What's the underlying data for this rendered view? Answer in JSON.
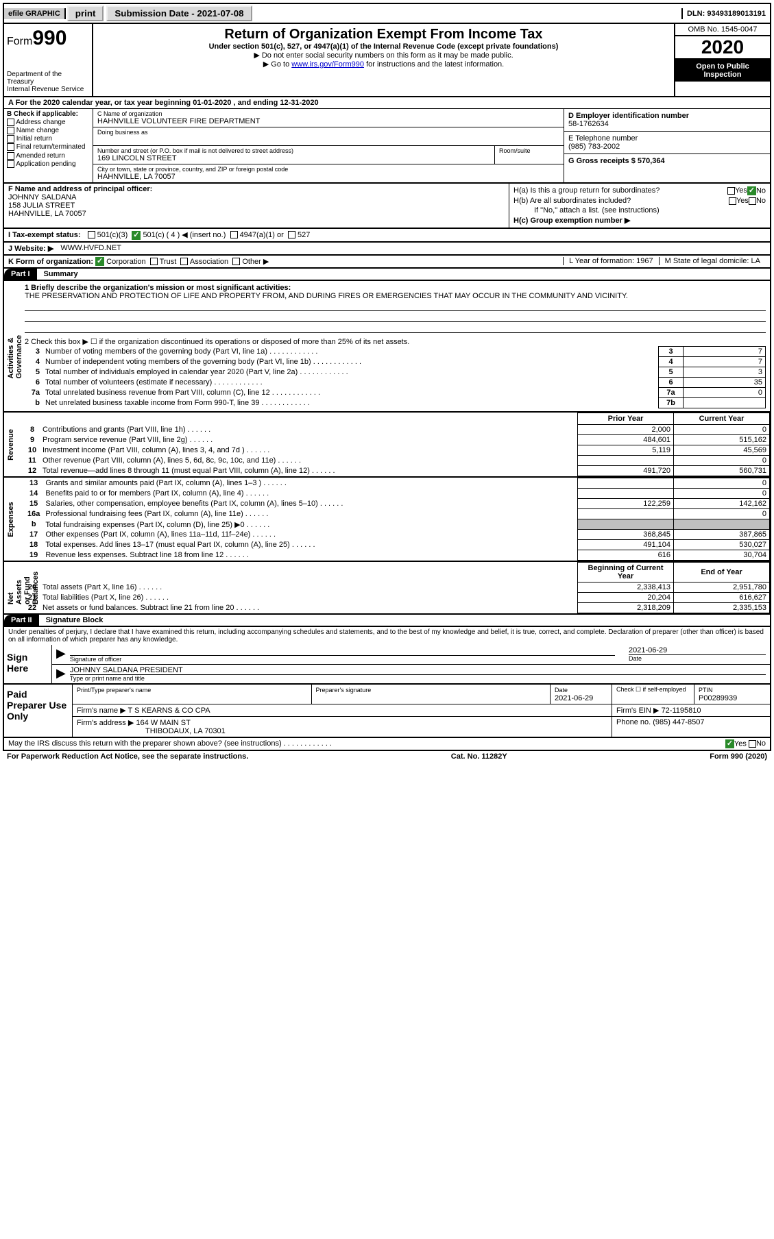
{
  "top": {
    "efile": "efile GRAPHIC",
    "print": "print",
    "sub_date": "Submission Date - 2021-07-08",
    "dln": "DLN: 93493189013191"
  },
  "header": {
    "form_word": "Form",
    "form_num": "990",
    "title": "Return of Organization Exempt From Income Tax",
    "subtitle": "Under section 501(c), 527, or 4947(a)(1) of the Internal Revenue Code (except private foundations)",
    "note1": "▶ Do not enter social security numbers on this form as it may be made public.",
    "note2_prefix": "▶ Go to ",
    "note2_link": "www.irs.gov/Form990",
    "note2_suffix": " for instructions and the latest information.",
    "dept": "Department of the Treasury\nInternal Revenue Service",
    "omb": "OMB No. 1545-0047",
    "year": "2020",
    "open": "Open to Public Inspection"
  },
  "period": "A For the 2020 calendar year, or tax year beginning 01-01-2020    , and ending 12-31-2020",
  "B": {
    "header": "B Check if applicable:",
    "items": [
      "Address change",
      "Name change",
      "Initial return",
      "Final return/terminated",
      "Amended return",
      "Application pending"
    ]
  },
  "C": {
    "name_label": "C Name of organization",
    "name": "HAHNVILLE VOLUNTEER FIRE DEPARTMENT",
    "dba_label": "Doing business as",
    "street_label": "Number and street (or P.O. box if mail is not delivered to street address)",
    "street": "169 LINCOLN STREET",
    "room_label": "Room/suite",
    "city_label": "City or town, state or province, country, and ZIP or foreign postal code",
    "city": "HAHNVILLE, LA  70057"
  },
  "D": {
    "ein_label": "D Employer identification number",
    "ein": "58-1762634",
    "phone_label": "E Telephone number",
    "phone": "(985) 783-2002",
    "gross_label": "G Gross receipts $ 570,364"
  },
  "F": {
    "label": "F  Name and address of principal officer:",
    "name": "JOHNNY SALDANA",
    "addr1": "158 JULIA STREET",
    "addr2": "HAHNVILLE, LA  70057"
  },
  "H": {
    "a_label": "H(a)  Is this a group return for subordinates?",
    "b_label": "H(b)  Are all subordinates included?",
    "b_note": "If \"No,\" attach a list. (see instructions)",
    "c_label": "H(c)  Group exemption number ▶",
    "yes": "Yes",
    "no": "No"
  },
  "I": {
    "label": "I  Tax-exempt status:",
    "opts": [
      "501(c)(3)",
      "501(c) ( 4 ) ◀ (insert no.)",
      "4947(a)(1) or",
      "527"
    ]
  },
  "J": {
    "label": "J   Website: ▶",
    "value": "WWW.HVFD.NET"
  },
  "K": {
    "label": "K Form of organization:",
    "opts": [
      "Corporation",
      "Trust",
      "Association",
      "Other ▶"
    ],
    "L": "L Year of formation: 1967",
    "M": "M State of legal domicile: LA"
  },
  "part1": {
    "label": "Part I",
    "title": "Summary",
    "line1_label": "1  Briefly describe the organization's mission or most significant activities:",
    "mission": "THE PRESERVATION AND PROTECTION OF LIFE AND PROPERTY FROM, AND DURING FIRES OR EMERGENCIES THAT MAY OCCUR IN THE COMMUNITY AND VICINITY.",
    "line2": "2  Check this box ▶ ☐  if the organization discontinued its operations or disposed of more than 25% of its net assets.",
    "side_ag": "Activities & Governance",
    "side_rev": "Revenue",
    "side_exp": "Expenses",
    "side_net": "Net Assets or Fund Balances",
    "rows_ag": [
      {
        "n": "3",
        "d": "Number of voting members of the governing body (Part VI, line 1a)",
        "box": "3",
        "v": "7"
      },
      {
        "n": "4",
        "d": "Number of independent voting members of the governing body (Part VI, line 1b)",
        "box": "4",
        "v": "7"
      },
      {
        "n": "5",
        "d": "Total number of individuals employed in calendar year 2020 (Part V, line 2a)",
        "box": "5",
        "v": "3"
      },
      {
        "n": "6",
        "d": "Total number of volunteers (estimate if necessary)",
        "box": "6",
        "v": "35"
      },
      {
        "n": "7a",
        "d": "Total unrelated business revenue from Part VIII, column (C), line 12",
        "box": "7a",
        "v": "0"
      },
      {
        "n": "b",
        "d": "Net unrelated business taxable income from Form 990-T, line 39",
        "box": "7b",
        "v": ""
      }
    ],
    "py_label": "Prior Year",
    "cy_label": "Current Year",
    "rows_rev": [
      {
        "n": "8",
        "d": "Contributions and grants (Part VIII, line 1h)",
        "py": "2,000",
        "cy": "0"
      },
      {
        "n": "9",
        "d": "Program service revenue (Part VIII, line 2g)",
        "py": "484,601",
        "cy": "515,162"
      },
      {
        "n": "10",
        "d": "Investment income (Part VIII, column (A), lines 3, 4, and 7d )",
        "py": "5,119",
        "cy": "45,569"
      },
      {
        "n": "11",
        "d": "Other revenue (Part VIII, column (A), lines 5, 6d, 8c, 9c, 10c, and 11e)",
        "py": "",
        "cy": "0"
      },
      {
        "n": "12",
        "d": "Total revenue—add lines 8 through 11 (must equal Part VIII, column (A), line 12)",
        "py": "491,720",
        "cy": "560,731"
      }
    ],
    "rows_exp": [
      {
        "n": "13",
        "d": "Grants and similar amounts paid (Part IX, column (A), lines 1–3 )",
        "py": "",
        "cy": "0"
      },
      {
        "n": "14",
        "d": "Benefits paid to or for members (Part IX, column (A), line 4)",
        "py": "",
        "cy": "0"
      },
      {
        "n": "15",
        "d": "Salaries, other compensation, employee benefits (Part IX, column (A), lines 5–10)",
        "py": "122,259",
        "cy": "142,162"
      },
      {
        "n": "16a",
        "d": "Professional fundraising fees (Part IX, column (A), line 11e)",
        "py": "",
        "cy": "0"
      },
      {
        "n": "b",
        "d": "Total fundraising expenses (Part IX, column (D), line 25) ▶0",
        "py": "gray",
        "cy": "gray"
      },
      {
        "n": "17",
        "d": "Other expenses (Part IX, column (A), lines 11a–11d, 11f–24e)",
        "py": "368,845",
        "cy": "387,865"
      },
      {
        "n": "18",
        "d": "Total expenses. Add lines 13–17 (must equal Part IX, column (A), line 25)",
        "py": "491,104",
        "cy": "530,027"
      },
      {
        "n": "19",
        "d": "Revenue less expenses. Subtract line 18 from line 12",
        "py": "616",
        "cy": "30,704"
      }
    ],
    "bcy_label": "Beginning of Current Year",
    "eoy_label": "End of Year",
    "rows_net": [
      {
        "n": "20",
        "d": "Total assets (Part X, line 16)",
        "py": "2,338,413",
        "cy": "2,951,780"
      },
      {
        "n": "21",
        "d": "Total liabilities (Part X, line 26)",
        "py": "20,204",
        "cy": "616,627"
      },
      {
        "n": "22",
        "d": "Net assets or fund balances. Subtract line 21 from line 20",
        "py": "2,318,209",
        "cy": "2,335,153"
      }
    ]
  },
  "part2": {
    "label": "Part II",
    "title": "Signature Block",
    "decl": "Under penalties of perjury, I declare that I have examined this return, including accompanying schedules and statements, and to the best of my knowledge and belief, it is true, correct, and complete. Declaration of preparer (other than officer) is based on all information of which preparer has any knowledge.",
    "sign_here": "Sign Here",
    "sig_officer_label": "Signature of officer",
    "date_label": "Date",
    "sig_date": "2021-06-29",
    "officer_name": "JOHNNY SALDANA  PRESIDENT",
    "type_label": "Type or print name and title"
  },
  "paid": {
    "label": "Paid Preparer Use Only",
    "col1": "Print/Type preparer's name",
    "col2": "Preparer's signature",
    "col3": "Date",
    "date": "2021-06-29",
    "check_label": "Check ☐ if self-employed",
    "ptin_label": "PTIN",
    "ptin": "P00289939",
    "firm_name_label": "Firm's name    ▶",
    "firm_name": "T S KEARNS & CO CPA",
    "firm_ein_label": "Firm's EIN ▶",
    "firm_ein": "72-1195810",
    "firm_addr_label": "Firm's address ▶",
    "firm_addr1": "164 W MAIN ST",
    "firm_addr2": "THIBODAUX, LA  70301",
    "phone_label": "Phone no.",
    "phone": "(985) 447-8507"
  },
  "discuss": "May the IRS discuss this return with the preparer shown above? (see instructions)",
  "footer": {
    "left": "For Paperwork Reduction Act Notice, see the separate instructions.",
    "mid": "Cat. No. 11282Y",
    "right": "Form 990 (2020)"
  }
}
